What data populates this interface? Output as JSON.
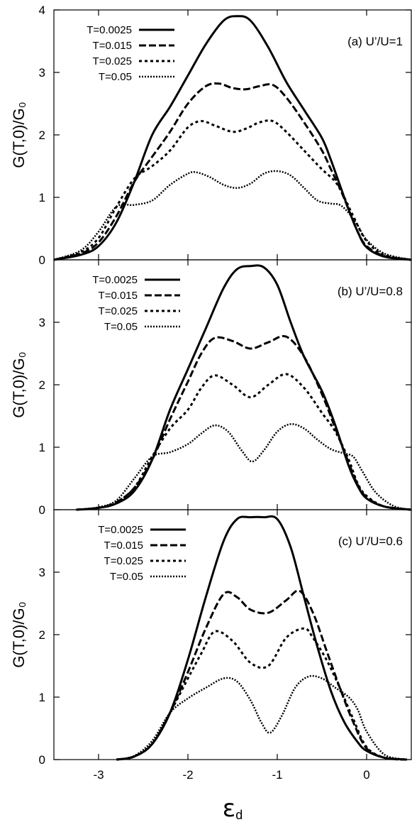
{
  "chart_data": [
    {
      "type": "line",
      "panel_label": "(a) U’/U=1",
      "ylabel": "G(T,0)/G₀",
      "xlim": [
        -3.5,
        0.5
      ],
      "ylim": [
        0,
        4
      ],
      "yticks": [
        "0",
        "1",
        "2",
        "3",
        "4"
      ],
      "legend_position": "top-left",
      "series": [
        {
          "name": "T=0.0025",
          "style": "solid",
          "x": [
            -3.5,
            -3.2,
            -3.0,
            -2.8,
            -2.6,
            -2.4,
            -2.2,
            -2.0,
            -1.8,
            -1.6,
            -1.45,
            -1.3,
            -1.1,
            -0.9,
            -0.7,
            -0.5,
            -0.4,
            -0.3,
            -0.2,
            -0.1,
            0.0,
            0.2,
            0.5
          ],
          "y": [
            0.0,
            0.08,
            0.22,
            0.6,
            1.25,
            2.0,
            2.45,
            2.95,
            3.45,
            3.83,
            3.9,
            3.83,
            3.4,
            2.85,
            2.4,
            1.95,
            1.6,
            1.2,
            0.8,
            0.45,
            0.2,
            0.05,
            0.0
          ]
        },
        {
          "name": "T=0.015",
          "style": "dashed",
          "x": [
            -3.5,
            -3.2,
            -3.0,
            -2.8,
            -2.6,
            -2.4,
            -2.2,
            -2.0,
            -1.8,
            -1.65,
            -1.5,
            -1.35,
            -1.2,
            -1.05,
            -0.9,
            -0.7,
            -0.5,
            -0.4,
            -0.3,
            -0.2,
            -0.1,
            0.0,
            0.2,
            0.5
          ],
          "y": [
            0.0,
            0.1,
            0.28,
            0.7,
            1.25,
            1.65,
            2.05,
            2.5,
            2.78,
            2.82,
            2.75,
            2.73,
            2.78,
            2.8,
            2.6,
            2.2,
            1.75,
            1.45,
            1.15,
            0.8,
            0.45,
            0.22,
            0.06,
            0.0
          ]
        },
        {
          "name": "T=0.025",
          "style": "dotted",
          "x": [
            -3.5,
            -3.2,
            -3.0,
            -2.8,
            -2.6,
            -2.4,
            -2.2,
            -2.0,
            -1.85,
            -1.7,
            -1.5,
            -1.35,
            -1.2,
            -1.05,
            -0.9,
            -0.7,
            -0.5,
            -0.35,
            -0.25,
            -0.15,
            0.0,
            0.2,
            0.5
          ],
          "y": [
            0.0,
            0.12,
            0.35,
            0.85,
            1.3,
            1.5,
            1.75,
            2.12,
            2.22,
            2.15,
            2.05,
            2.1,
            2.2,
            2.22,
            2.05,
            1.75,
            1.45,
            1.25,
            1.0,
            0.7,
            0.3,
            0.08,
            0.0
          ]
        },
        {
          "name": "T=0.05",
          "style": "dense-dotted",
          "x": [
            -3.5,
            -3.2,
            -3.0,
            -2.8,
            -2.6,
            -2.4,
            -2.2,
            -2.0,
            -1.9,
            -1.75,
            -1.6,
            -1.45,
            -1.3,
            -1.15,
            -1.0,
            -0.85,
            -0.7,
            -0.55,
            -0.4,
            -0.3,
            -0.2,
            -0.1,
            0.0,
            0.2,
            0.5
          ],
          "y": [
            0.0,
            0.15,
            0.45,
            0.85,
            0.88,
            0.95,
            1.2,
            1.38,
            1.4,
            1.32,
            1.2,
            1.15,
            1.22,
            1.38,
            1.42,
            1.35,
            1.15,
            0.95,
            0.9,
            0.88,
            0.75,
            0.55,
            0.32,
            0.1,
            0.0
          ]
        }
      ]
    },
    {
      "type": "line",
      "panel_label": "(b) U’/U=0.8",
      "ylabel": "G(T,0)/G₀",
      "xlim": [
        -3.5,
        0.5
      ],
      "ylim": [
        0,
        4
      ],
      "yticks": [
        "0",
        "1",
        "2",
        "3"
      ],
      "legend_position": "top-left",
      "series": [
        {
          "name": "T=0.0025",
          "style": "solid",
          "x": [
            -3.25,
            -3.0,
            -2.8,
            -2.6,
            -2.4,
            -2.2,
            -2.0,
            -1.8,
            -1.6,
            -1.45,
            -1.3,
            -1.15,
            -1.0,
            -0.85,
            -0.7,
            -0.5,
            -0.35,
            -0.2,
            -0.1,
            0.0,
            0.2,
            0.5
          ],
          "y": [
            0.0,
            0.03,
            0.1,
            0.3,
            0.8,
            1.6,
            2.25,
            2.9,
            3.55,
            3.85,
            3.9,
            3.88,
            3.6,
            3.0,
            2.45,
            1.9,
            1.35,
            0.7,
            0.38,
            0.18,
            0.05,
            0.0
          ]
        },
        {
          "name": "T=0.015",
          "style": "dashed",
          "x": [
            -3.25,
            -3.0,
            -2.8,
            -2.6,
            -2.4,
            -2.2,
            -2.0,
            -1.85,
            -1.7,
            -1.5,
            -1.3,
            -1.1,
            -0.9,
            -0.7,
            -0.5,
            -0.35,
            -0.2,
            -0.1,
            0.0,
            0.2,
            0.5
          ],
          "y": [
            0.0,
            0.03,
            0.12,
            0.35,
            0.8,
            1.45,
            2.05,
            2.5,
            2.75,
            2.7,
            2.58,
            2.68,
            2.77,
            2.45,
            1.85,
            1.3,
            0.75,
            0.4,
            0.2,
            0.05,
            0.0
          ]
        },
        {
          "name": "T=0.025",
          "style": "dotted",
          "x": [
            -3.25,
            -3.0,
            -2.8,
            -2.6,
            -2.4,
            -2.2,
            -2.0,
            -1.85,
            -1.7,
            -1.5,
            -1.3,
            -1.1,
            -0.9,
            -0.7,
            -0.5,
            -0.35,
            -0.2,
            -0.1,
            0.0,
            0.2,
            0.5
          ],
          "y": [
            0.0,
            0.03,
            0.12,
            0.35,
            0.85,
            1.3,
            1.6,
            1.95,
            2.15,
            2.0,
            1.8,
            2.0,
            2.17,
            1.95,
            1.55,
            1.25,
            0.8,
            0.42,
            0.22,
            0.05,
            0.0
          ]
        },
        {
          "name": "T=0.05",
          "style": "dense-dotted",
          "x": [
            -3.25,
            -3.0,
            -2.8,
            -2.6,
            -2.4,
            -2.2,
            -2.0,
            -1.85,
            -1.7,
            -1.55,
            -1.4,
            -1.28,
            -1.15,
            -1.0,
            -0.85,
            -0.7,
            -0.55,
            -0.4,
            -0.25,
            -0.15,
            -0.05,
            0.1,
            0.3,
            0.5
          ],
          "y": [
            0.0,
            0.04,
            0.15,
            0.5,
            0.85,
            0.92,
            1.05,
            1.22,
            1.35,
            1.25,
            0.95,
            0.77,
            0.95,
            1.25,
            1.37,
            1.3,
            1.12,
            0.97,
            0.9,
            0.85,
            0.62,
            0.28,
            0.06,
            0.0
          ]
        }
      ]
    },
    {
      "type": "line",
      "panel_label": "(c) U’/U=0.6",
      "ylabel": "G(T,0)/G₀",
      "xlabel": "εd",
      "xlim": [
        -3.5,
        0.5
      ],
      "ylim": [
        0,
        4
      ],
      "xticks": [
        "-3",
        "-2",
        "-1",
        "0"
      ],
      "yticks": [
        "0",
        "1",
        "2",
        "3"
      ],
      "legend_position": "top-left",
      "series": [
        {
          "name": "T=0.0025",
          "style": "solid",
          "x": [
            -2.8,
            -2.6,
            -2.4,
            -2.2,
            -2.0,
            -1.8,
            -1.6,
            -1.45,
            -1.3,
            -1.15,
            -1.0,
            -0.85,
            -0.7,
            -0.55,
            -0.4,
            -0.25,
            -0.1,
            0.0,
            0.2,
            0.45
          ],
          "y": [
            0.0,
            0.05,
            0.25,
            0.75,
            1.6,
            2.6,
            3.5,
            3.85,
            3.88,
            3.88,
            3.85,
            3.4,
            2.6,
            1.8,
            1.1,
            0.6,
            0.28,
            0.14,
            0.03,
            0.0
          ]
        },
        {
          "name": "T=0.015",
          "style": "dashed",
          "x": [
            -2.8,
            -2.6,
            -2.4,
            -2.2,
            -2.0,
            -1.8,
            -1.6,
            -1.45,
            -1.3,
            -1.1,
            -0.9,
            -0.75,
            -0.6,
            -0.45,
            -0.3,
            -0.15,
            0.0,
            0.2,
            0.45
          ],
          "y": [
            0.0,
            0.05,
            0.25,
            0.75,
            1.4,
            2.1,
            2.65,
            2.6,
            2.4,
            2.35,
            2.55,
            2.7,
            2.35,
            1.75,
            1.15,
            0.6,
            0.18,
            0.03,
            0.0
          ]
        },
        {
          "name": "T=0.025",
          "style": "dotted",
          "x": [
            -2.8,
            -2.6,
            -2.4,
            -2.2,
            -2.0,
            -1.85,
            -1.7,
            -1.5,
            -1.3,
            -1.1,
            -0.9,
            -0.7,
            -0.6,
            -0.45,
            -0.3,
            -0.15,
            0.0,
            0.2,
            0.45
          ],
          "y": [
            0.0,
            0.05,
            0.25,
            0.75,
            1.3,
            1.7,
            2.05,
            1.9,
            1.55,
            1.5,
            1.95,
            2.1,
            1.95,
            1.6,
            1.15,
            0.65,
            0.2,
            0.03,
            0.0
          ]
        },
        {
          "name": "T=0.05",
          "style": "dense-dotted",
          "x": [
            -2.8,
            -2.6,
            -2.4,
            -2.2,
            -2.0,
            -1.8,
            -1.6,
            -1.45,
            -1.3,
            -1.18,
            -1.08,
            -0.95,
            -0.8,
            -0.65,
            -0.5,
            -0.35,
            -0.2,
            -0.1,
            0.0,
            0.2,
            0.45
          ],
          "y": [
            0.0,
            0.06,
            0.3,
            0.75,
            0.98,
            1.15,
            1.3,
            1.25,
            0.95,
            0.6,
            0.43,
            0.7,
            1.15,
            1.33,
            1.3,
            1.15,
            1.0,
            0.8,
            0.45,
            0.08,
            0.0
          ]
        }
      ]
    }
  ]
}
